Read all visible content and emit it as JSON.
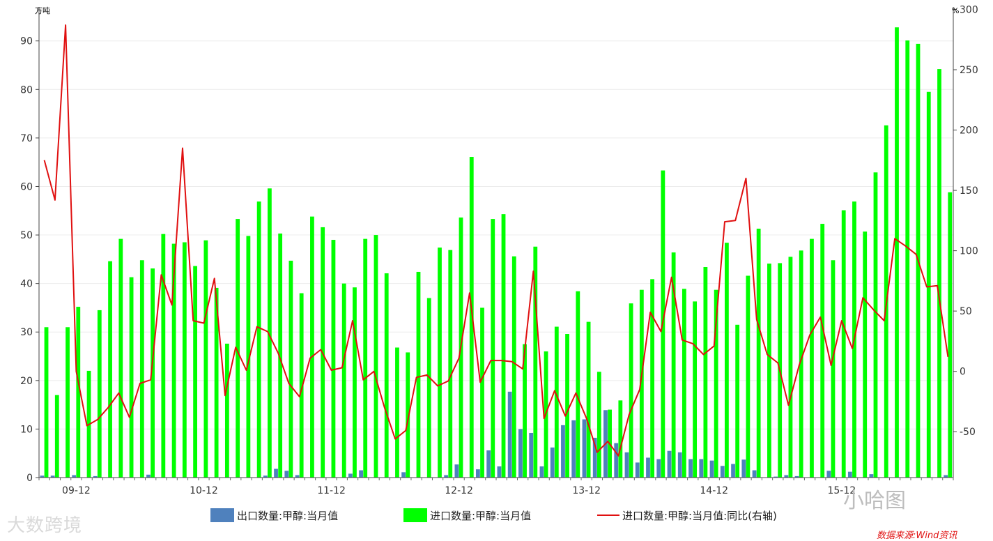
{
  "chart_data": {
    "type": "bar",
    "left_unit": "万吨",
    "right_unit": "%",
    "left_ylim": [
      0,
      97
    ],
    "right_ylim": [
      -88,
      302
    ],
    "left_ticks": [
      0,
      10,
      20,
      30,
      40,
      50,
      60,
      70,
      80,
      90
    ],
    "right_ticks": [
      -50,
      0,
      50,
      100,
      150,
      200,
      250,
      300
    ],
    "x_tick_labels": [
      {
        "index": 3,
        "label": "09-12"
      },
      {
        "index": 15,
        "label": "10-12"
      },
      {
        "index": 27,
        "label": "11-12"
      },
      {
        "index": 39,
        "label": "12-12"
      },
      {
        "index": 51,
        "label": "13-12"
      },
      {
        "index": 63,
        "label": "14-12"
      },
      {
        "index": 75,
        "label": "15-12"
      }
    ],
    "series": [
      {
        "name": "出口数量:甲醇:当月值",
        "kind": "bar",
        "axis": "left",
        "color": "#4f81bd",
        "values": [
          0.4,
          0.4,
          0,
          0.5,
          0,
          0.3,
          0,
          0,
          0,
          0,
          0.6,
          0,
          0,
          0,
          0,
          0,
          0,
          0,
          0,
          0,
          0,
          0.4,
          1.8,
          1.4,
          0.5,
          0,
          0,
          0,
          0,
          0.8,
          1.5,
          0,
          0,
          0,
          1.1,
          0,
          0,
          0,
          0.5,
          2.7,
          0,
          1.7,
          5.6,
          2.3,
          17.7,
          10,
          9.2,
          2.3,
          6.2,
          10.8,
          11.8,
          12,
          8.2,
          13.9,
          7.1,
          5.2,
          3.1,
          4.1,
          3.8,
          5.5,
          5.2,
          3.8,
          3.8,
          3.5,
          2.4,
          2.8,
          3.7,
          1.5,
          0,
          0.2,
          0.5,
          0.3,
          0,
          0,
          1.4,
          0,
          1.2,
          0,
          0.7,
          0,
          0,
          0,
          0,
          0,
          0,
          0.5
        ]
      },
      {
        "name": "进口数量:甲醇:当月值",
        "kind": "bar",
        "axis": "left",
        "color": "#00ff00",
        "values": [
          31,
          17,
          31,
          35.2,
          22,
          34.5,
          44.6,
          49.2,
          41.3,
          44.8,
          43.1,
          50.2,
          48.2,
          48.5,
          43.6,
          48.9,
          39.1,
          27.6,
          53.3,
          49.8,
          56.9,
          59.6,
          50.3,
          44.7,
          38,
          53.8,
          51.6,
          49,
          40,
          39.2,
          49.2,
          50,
          42.1,
          26.8,
          25.8,
          42.4,
          37,
          47.4,
          46.9,
          53.6,
          66.1,
          35,
          53.3,
          54.3,
          45.6,
          27.5,
          47.6,
          26,
          31.1,
          29.6,
          38.4,
          32.1,
          21.8,
          14,
          15.9,
          35.9,
          38.7,
          40.9,
          63.3,
          46.4,
          38.9,
          36.3,
          43.4,
          38.7,
          48.4,
          31.5,
          41.6,
          51.3,
          44.1,
          44.2,
          45.5,
          46.8,
          49.2,
          52.3,
          44.8,
          55.1,
          56.9,
          50.7,
          62.9,
          72.6,
          92.8,
          90.1,
          89.4,
          79.5,
          84.2,
          58.8
        ]
      },
      {
        "name": "进口数量:甲醇:当月值:同比(右轴)",
        "kind": "line",
        "axis": "right",
        "color": "#e01010",
        "values": [
          175,
          142,
          287,
          0,
          -45,
          -40,
          -30,
          -18,
          -38,
          -10,
          -7,
          80,
          55,
          185,
          42,
          40,
          77,
          -20,
          20,
          1,
          37,
          33,
          15,
          -10,
          -21,
          11,
          18,
          1,
          3,
          42,
          -7,
          0,
          -30,
          -56,
          -49,
          -5,
          -3,
          -12,
          -8,
          11,
          65,
          -9,
          9,
          9,
          8,
          2,
          83,
          -39,
          -16,
          -37,
          -18,
          -39,
          -67,
          -58,
          -70,
          -36,
          -15,
          49,
          33,
          78,
          26,
          23,
          14,
          21,
          124,
          125,
          160,
          43,
          14,
          7,
          -28,
          5,
          30,
          45,
          5,
          42,
          19,
          61,
          51,
          42,
          110,
          104,
          97,
          70,
          71,
          12
        ]
      }
    ]
  },
  "legend": {
    "export_label": "出口数量:甲醇:当月值",
    "import_label": "进口数量:甲醇:当月值",
    "yoy_label": "进口数量:甲醇:当月值:同比(右轴)"
  },
  "watermarks": {
    "left": "大数跨境",
    "right": "小哈图"
  },
  "source": "数据来源:Wind资讯"
}
